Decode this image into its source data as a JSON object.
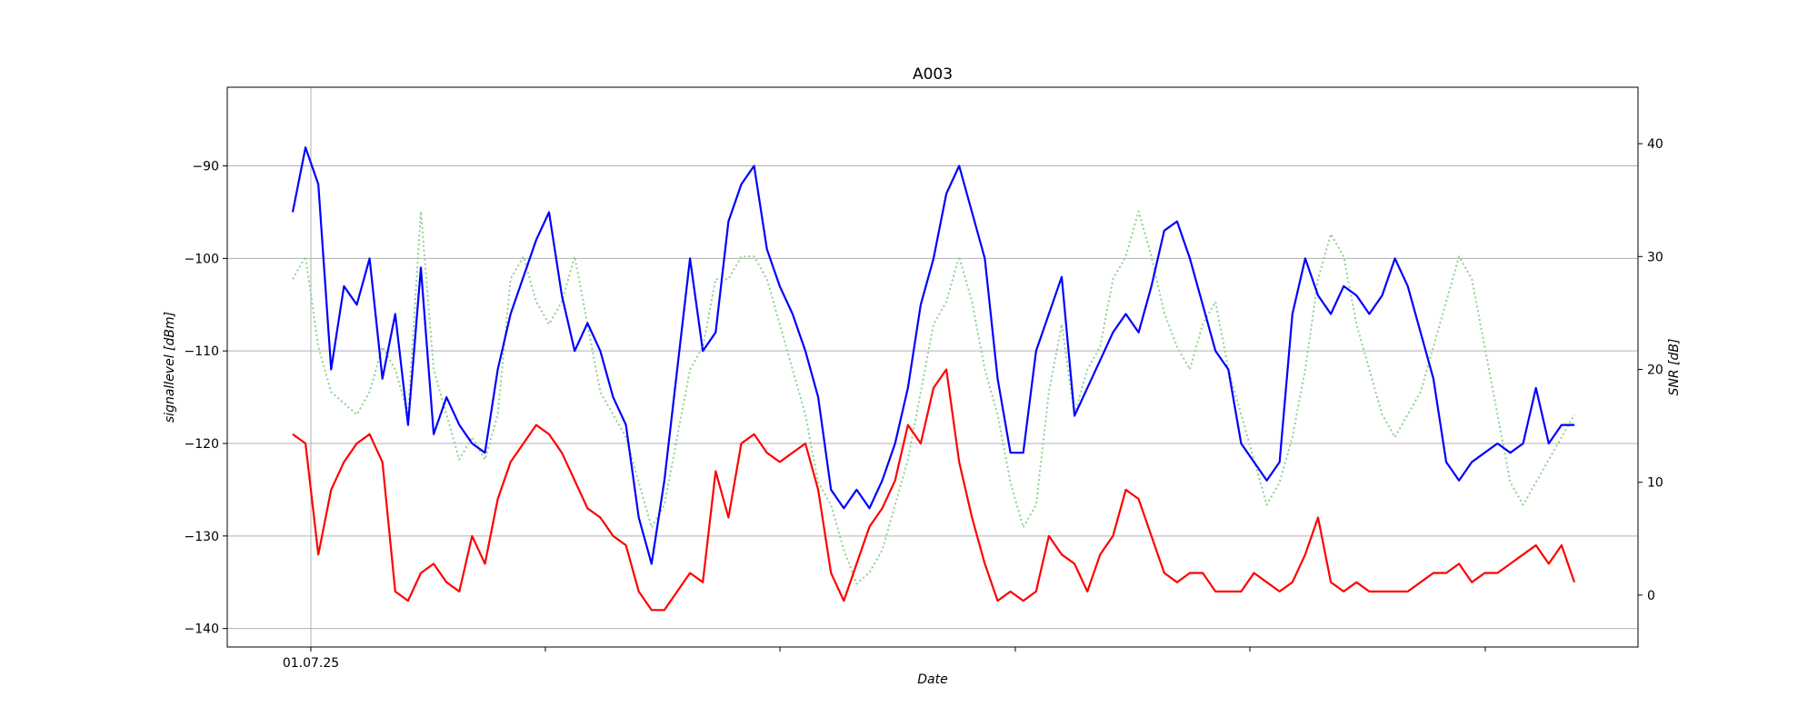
{
  "chart_data": {
    "type": "line",
    "title": "A003",
    "xlabel": "Date",
    "ylabel_left": "signallevel [dBm]",
    "ylabel_right": "SNR [dB]",
    "x_tick_labels": [
      "01.07.25"
    ],
    "grid": true,
    "y_left": {
      "ylim": [
        -142,
        -81.5
      ],
      "ticks": [
        -90,
        -100,
        -110,
        -120,
        -130,
        -140
      ]
    },
    "y_right": {
      "ylim": [
        -4.6,
        45.0
      ],
      "ticks": [
        40,
        30,
        20,
        10,
        0
      ]
    },
    "x_range": [
      0,
      100
    ],
    "series": [
      {
        "axis": "left",
        "color": "#0000ff",
        "style": "solid",
        "x": [
          0,
          1,
          2,
          3,
          4,
          5,
          6,
          7,
          8,
          9,
          10,
          11,
          12,
          13,
          14,
          15,
          16,
          17,
          18,
          19,
          20,
          21,
          22,
          23,
          24,
          25,
          26,
          27,
          28,
          29,
          30,
          31,
          32,
          33,
          34,
          35,
          36,
          37,
          38,
          39,
          40,
          41,
          42,
          43,
          44,
          45,
          46,
          47,
          48,
          49,
          50,
          51,
          52,
          53,
          54,
          55,
          56,
          57,
          58,
          59,
          60,
          61,
          62,
          63,
          64,
          65,
          66,
          67,
          68,
          69,
          70,
          71,
          72,
          73,
          74,
          75,
          76,
          77,
          78,
          79,
          80,
          81,
          82,
          83,
          84,
          85,
          86,
          87,
          88,
          89,
          90,
          91,
          92,
          93,
          94,
          95,
          96,
          97,
          98,
          99,
          100
        ],
        "y": [
          -95,
          -88,
          -92,
          -112,
          -103,
          -105,
          -100,
          -113,
          -106,
          -118,
          -101,
          -119,
          -115,
          -118,
          -120,
          -121,
          -112,
          -106,
          -102,
          -98,
          -95,
          -104,
          -110,
          -107,
          -110,
          -115,
          -118,
          -128,
          -133,
          -124,
          -112,
          -100,
          -110,
          -108,
          -96,
          -92,
          -90,
          -99,
          -103,
          -106,
          -110,
          -115,
          -125,
          -127,
          -125,
          -127,
          -124,
          -120,
          -114,
          -105,
          -100,
          -93,
          -90,
          -95,
          -100,
          -113,
          -121,
          -121,
          -110,
          -106,
          -102,
          -117,
          -114,
          -111,
          -108,
          -106,
          -108,
          -103,
          -97,
          -96,
          -100,
          -105,
          -110,
          -112,
          -120,
          -122,
          -124,
          -122,
          -106,
          -100,
          -104,
          -106,
          -103,
          -104,
          -106,
          -104,
          -100,
          -103,
          -108,
          -113,
          -122,
          -124,
          -122,
          -121,
          -120,
          -121,
          -120,
          -114,
          -120,
          -118,
          -118
        ]
      },
      {
        "axis": "left",
        "color": "#ff0000",
        "style": "solid",
        "x": [
          0,
          1,
          2,
          3,
          4,
          5,
          6,
          7,
          8,
          9,
          10,
          11,
          12,
          13,
          14,
          15,
          16,
          17,
          18,
          19,
          20,
          21,
          22,
          23,
          24,
          25,
          26,
          27,
          28,
          29,
          30,
          31,
          32,
          33,
          34,
          35,
          36,
          37,
          38,
          39,
          40,
          41,
          42,
          43,
          44,
          45,
          46,
          47,
          48,
          49,
          50,
          51,
          52,
          53,
          54,
          55,
          56,
          57,
          58,
          59,
          60,
          61,
          62,
          63,
          64,
          65,
          66,
          67,
          68,
          69,
          70,
          71,
          72,
          73,
          74,
          75,
          76,
          77,
          78,
          79,
          80,
          81,
          82,
          83,
          84,
          85,
          86,
          87,
          88,
          89,
          90,
          91,
          92,
          93,
          94,
          95,
          96,
          97,
          98,
          99,
          100
        ],
        "y": [
          -119,
          -120,
          -132,
          -125,
          -122,
          -120,
          -119,
          -122,
          -136,
          -137,
          -134,
          -133,
          -135,
          -136,
          -130,
          -133,
          -126,
          -122,
          -120,
          -118,
          -119,
          -121,
          -124,
          -127,
          -128,
          -130,
          -131,
          -136,
          -138,
          -138,
          -136,
          -134,
          -135,
          -123,
          -128,
          -120,
          -119,
          -121,
          -122,
          -121,
          -120,
          -125,
          -134,
          -137,
          -133,
          -129,
          -127,
          -124,
          -118,
          -120,
          -114,
          -112,
          -122,
          -128,
          -133,
          -137,
          -136,
          -137,
          -136,
          -130,
          -132,
          -133,
          -136,
          -132,
          -130,
          -125,
          -126,
          -130,
          -134,
          -135,
          -134,
          -134,
          -136,
          -136,
          -136,
          -134,
          -135,
          -136,
          -135,
          -132,
          -128,
          -135,
          -136,
          -135,
          -136,
          -136,
          -136,
          -136,
          -135,
          -134,
          -134,
          -133,
          -135,
          -134,
          -134,
          -133,
          -132,
          -131,
          -133,
          -131,
          -135
        ]
      },
      {
        "axis": "right",
        "color": "#90d090",
        "style": "dotted",
        "x": [
          0,
          1,
          2,
          3,
          4,
          5,
          6,
          7,
          8,
          9,
          10,
          11,
          12,
          13,
          14,
          15,
          16,
          17,
          18,
          19,
          20,
          21,
          22,
          23,
          24,
          25,
          26,
          27,
          28,
          29,
          30,
          31,
          32,
          33,
          34,
          35,
          36,
          37,
          38,
          39,
          40,
          41,
          42,
          43,
          44,
          45,
          46,
          47,
          48,
          49,
          50,
          51,
          52,
          53,
          54,
          55,
          56,
          57,
          58,
          59,
          60,
          61,
          62,
          63,
          64,
          65,
          66,
          67,
          68,
          69,
          70,
          71,
          72,
          73,
          74,
          75,
          76,
          77,
          78,
          79,
          80,
          81,
          82,
          83,
          84,
          85,
          86,
          87,
          88,
          89,
          90,
          91,
          92,
          93,
          94,
          95,
          96,
          97,
          98,
          99,
          100
        ],
        "y": [
          28,
          30,
          22,
          18,
          17,
          16,
          18,
          22,
          20,
          16,
          34,
          20,
          16,
          12,
          14,
          12,
          16,
          28,
          30,
          26,
          24,
          26,
          30,
          24,
          18,
          16,
          14,
          10,
          6,
          8,
          14,
          20,
          22,
          28,
          28,
          30,
          30,
          28,
          24,
          20,
          16,
          10,
          8,
          4,
          1,
          2,
          4,
          8,
          12,
          18,
          24,
          26,
          30,
          26,
          20,
          16,
          10,
          6,
          8,
          18,
          24,
          16,
          20,
          22,
          28,
          30,
          34,
          30,
          25,
          22,
          20,
          24,
          26,
          20,
          16,
          12,
          8,
          10,
          14,
          20,
          28,
          32,
          30,
          24,
          20,
          16,
          14,
          16,
          18,
          22,
          26,
          30,
          28,
          22,
          16,
          10,
          8,
          10,
          12,
          14,
          16
        ]
      }
    ]
  }
}
